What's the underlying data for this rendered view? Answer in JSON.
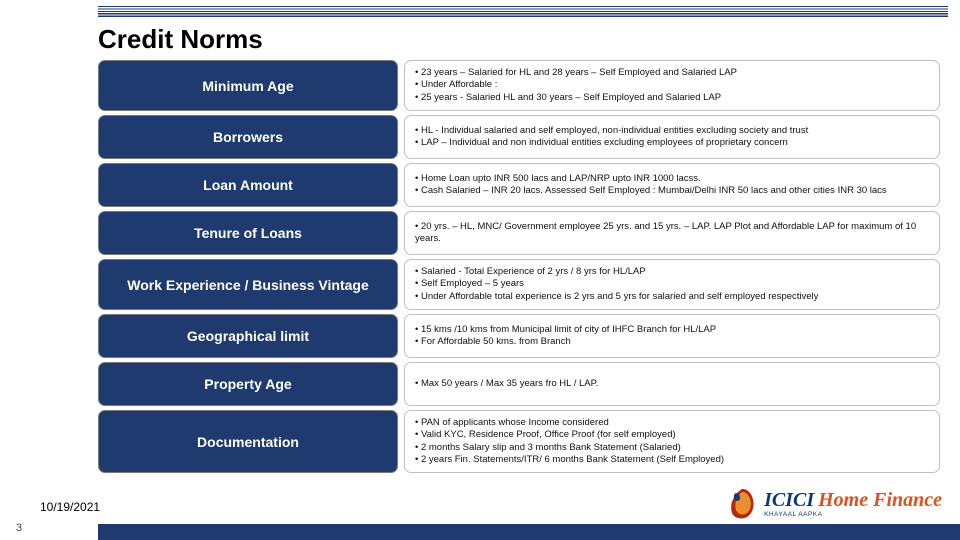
{
  "title": "Credit Norms",
  "date": "10/19/2021",
  "page_number": "3",
  "colors": {
    "label_bg": "#1e3a6f",
    "label_fg": "#ffffff",
    "desc_border": "#bfbfbf",
    "rule": "#1e3a6f"
  },
  "rows": [
    {
      "label": "Minimum Age",
      "bullets": [
        "• 23 years – Salaried for HL and 28 years – Self Employed and Salaried LAP",
        "• Under Affordable :",
        "• 25 years - Salaried HL and 30 years – Self Employed and Salaried LAP"
      ]
    },
    {
      "label": "Borrowers",
      "bullets": [
        "• HL - Individual salaried and self employed, non-individual entities excluding society and trust",
        "• LAP – Individual and non individual entities excluding employees of proprietary concern"
      ]
    },
    {
      "label": "Loan Amount",
      "bullets": [
        "• Home Loan upto INR 500 lacs and LAP/NRP upto INR 1000 lacss.",
        "• Cash Salaried – INR 20 lacs. Assessed Self Employed : Mumbai/Delhi INR 50 lacs and other cities INR 30 lacs"
      ]
    },
    {
      "label": "Tenure of Loans",
      "bullets": [
        "• 20 yrs. – HL, MNC/ Government employee 25 yrs. and 15 yrs. – LAP. LAP Plot and Affordable LAP for maximum of 10 years."
      ]
    },
    {
      "label": "Work Experience / Business Vintage",
      "bullets": [
        "• Salaried - Total Experience of 2 yrs / 8 yrs for HL/LAP",
        "• Self Employed – 5 years",
        "• Under Affordable total experience is 2 yrs and 5 yrs for salaried and self employed respectively"
      ]
    },
    {
      "label": "Geographical limit",
      "bullets": [
        "• 15 kms /10 kms from Municipal limit of city of IHFC Branch for HL/LAP",
        "• For Affordable 50 kms. from Branch"
      ]
    },
    {
      "label": "Property Age",
      "bullets": [
        "• Max 50 years / Max 35 years fro HL / LAP."
      ]
    },
    {
      "label": "Documentation",
      "bullets": [
        "• PAN of applicants whose Income considered",
        "• Valid KYC, Residence Proof, Office Proof (for self employed)",
        "• 2 months Salary slip and 3 months Bank Statement (Salaried)",
        "• 2 years Fin. Statements/ITR/ 6 months Bank Statement (Self Employed)"
      ]
    }
  ],
  "logo": {
    "brand1": "ICICI",
    "brand2": "Home Finance",
    "sub": "KHAYAAL AAPKA",
    "mark_colors": {
      "outer": "#b22a12",
      "inner": "#e98f2e",
      "dot": "#0a3a7a"
    }
  }
}
